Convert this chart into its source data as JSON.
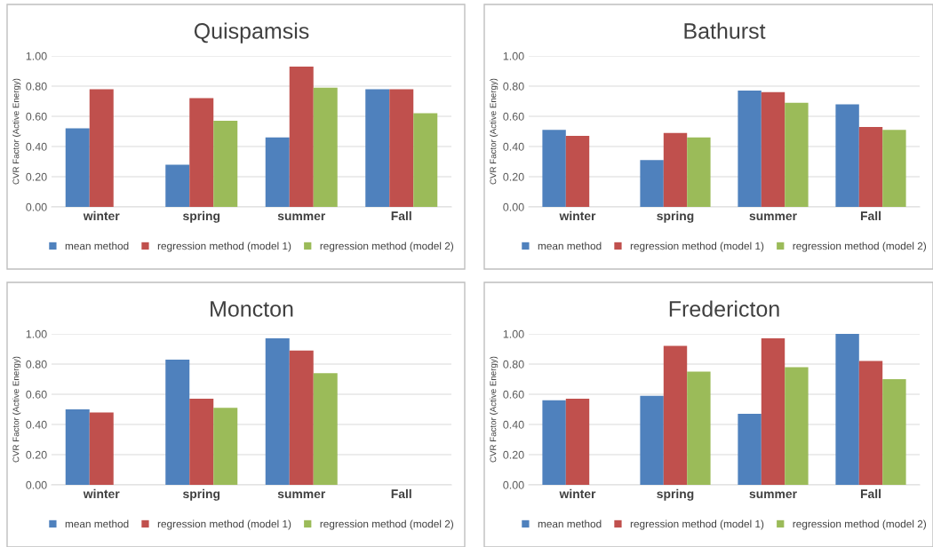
{
  "chart_data": [
    {
      "type": "bar",
      "title": "Quispamsis",
      "ylabel": "CVR Factor (Active Energy)",
      "categories": [
        "winter",
        "spring",
        "summer",
        "Fall"
      ],
      "series": [
        {
          "name": "mean method",
          "color": "#4f81bd",
          "values": [
            0.52,
            0.28,
            0.46,
            0.78
          ]
        },
        {
          "name": "regression method (model 1)",
          "color": "#c0504d",
          "values": [
            0.78,
            0.72,
            0.93,
            0.78
          ]
        },
        {
          "name": "regression method (model 2)",
          "color": "#9bbb59",
          "values": [
            null,
            0.57,
            0.79,
            0.62
          ]
        }
      ],
      "ylim": [
        0,
        1
      ],
      "yticks": [
        {
          "value": 0,
          "label": "0.00"
        },
        {
          "value": 0.2,
          "label": "0.20"
        },
        {
          "value": 0.4,
          "label": "0.40"
        },
        {
          "value": 0.6,
          "label": "0.60"
        },
        {
          "value": 0.8,
          "label": "0.80"
        },
        {
          "value": 1,
          "label": "1.00"
        }
      ],
      "grid": "y",
      "legend": "bottom"
    },
    {
      "type": "bar",
      "title": "Bathurst",
      "ylabel": "CVR Factor (Active Energy)",
      "categories": [
        "winter",
        "spring",
        "summer",
        "Fall"
      ],
      "series": [
        {
          "name": "mean method",
          "color": "#4f81bd",
          "values": [
            0.51,
            0.31,
            0.77,
            0.68
          ]
        },
        {
          "name": "regression method (model 1)",
          "color": "#c0504d",
          "values": [
            0.47,
            0.49,
            0.76,
            0.53
          ]
        },
        {
          "name": "regression method (model 2)",
          "color": "#9bbb59",
          "values": [
            null,
            0.46,
            0.69,
            0.51
          ]
        }
      ],
      "ylim": [
        0,
        1
      ],
      "yticks": [
        {
          "value": 0,
          "label": "0.00"
        },
        {
          "value": 0.2,
          "label": "0.20"
        },
        {
          "value": 0.4,
          "label": "0.40"
        },
        {
          "value": 0.6,
          "label": "0.60"
        },
        {
          "value": 0.8,
          "label": "0.80"
        },
        {
          "value": 1,
          "label": "1.00"
        }
      ],
      "grid": "y",
      "legend": "bottom"
    },
    {
      "type": "bar",
      "title": "Moncton",
      "ylabel": "CVR Factor (Active Energy)",
      "categories": [
        "winter",
        "spring",
        "summer",
        "Fall"
      ],
      "series": [
        {
          "name": "mean method",
          "color": "#4f81bd",
          "values": [
            0.5,
            0.83,
            0.97,
            null
          ]
        },
        {
          "name": "regression method (model 1)",
          "color": "#c0504d",
          "values": [
            0.48,
            0.57,
            0.89,
            null
          ]
        },
        {
          "name": "regression method (model 2)",
          "color": "#9bbb59",
          "values": [
            null,
            0.51,
            0.74,
            null
          ]
        }
      ],
      "ylim": [
        0,
        1
      ],
      "yticks": [
        {
          "value": 0,
          "label": "0.00"
        },
        {
          "value": 0.2,
          "label": "0.20"
        },
        {
          "value": 0.4,
          "label": "0.40"
        },
        {
          "value": 0.6,
          "label": "0.60"
        },
        {
          "value": 0.8,
          "label": "0.80"
        },
        {
          "value": 1,
          "label": "1.00"
        }
      ],
      "grid": "y",
      "legend": "bottom"
    },
    {
      "type": "bar",
      "title": "Fredericton",
      "ylabel": "CVR Factor (Active Energy)",
      "categories": [
        "winter",
        "spring",
        "summer",
        "Fall"
      ],
      "series": [
        {
          "name": "mean method",
          "color": "#4f81bd",
          "values": [
            0.56,
            0.59,
            0.47,
            1.0
          ]
        },
        {
          "name": "regression method (model 1)",
          "color": "#c0504d",
          "values": [
            0.57,
            0.92,
            0.97,
            0.82
          ]
        },
        {
          "name": "regression method (model 2)",
          "color": "#9bbb59",
          "values": [
            null,
            0.75,
            0.78,
            0.7
          ]
        }
      ],
      "ylim": [
        0,
        1
      ],
      "yticks": [
        {
          "value": 0,
          "label": "0.00"
        },
        {
          "value": 0.2,
          "label": "0.20"
        },
        {
          "value": 0.4,
          "label": "0.40"
        },
        {
          "value": 0.6,
          "label": "0.60"
        },
        {
          "value": 0.8,
          "label": "0.80"
        },
        {
          "value": 1,
          "label": "1.00"
        }
      ],
      "grid": "y",
      "legend": "bottom"
    }
  ]
}
